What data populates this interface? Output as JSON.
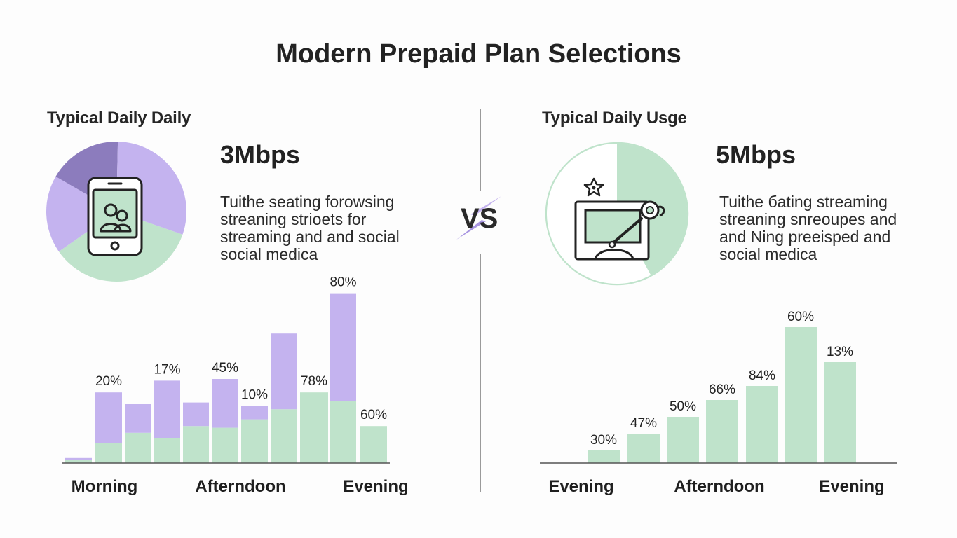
{
  "title": "Modern Prepaid Plan Selections",
  "vs_label": "VS",
  "colors": {
    "purple": "#c4b3ef",
    "purple_dark": "#8c7cbd",
    "green": "#bfe3cb",
    "axis": "#555555",
    "text": "#222222"
  },
  "left_panel": {
    "heading": "Typical Daily Daily",
    "speed": "3Mbps",
    "description": [
      "Tuithe seating forowsing",
      "streaning strioets for",
      "streaming and and social",
      "social medica"
    ],
    "icon": "smartphone-users-icon"
  },
  "right_panel": {
    "heading": "Typical Daily Usge",
    "speed": "5Mbps",
    "description": [
      "Tuithe бating streaming",
      "streaning snreoupes and",
      "and Ning preeisped and",
      "social medica"
    ],
    "icon": "monitor-stylus-icon"
  },
  "chart_data": [
    {
      "type": "pie",
      "slices": [
        {
          "color": "#8c7cbd",
          "value": 17
        },
        {
          "color": "#c4b3ef",
          "value": 30
        },
        {
          "color": "#bfe3cb",
          "value": 35
        },
        {
          "color": "#c4b3ef",
          "value": 18
        }
      ]
    },
    {
      "type": "bar",
      "stacked": true,
      "x_labels": [
        "Morning",
        "Afterndoon",
        "Evening"
      ],
      "series": [
        {
          "color": "#bfe3cb",
          "values": [
            2,
            12,
            18,
            15,
            22,
            21,
            26,
            32,
            42,
            37,
            22
          ]
        },
        {
          "color": "#c4b3ef",
          "values": [
            1,
            30,
            17,
            34,
            14,
            29,
            8,
            45,
            0,
            64,
            0
          ]
        }
      ],
      "data_labels": [
        "",
        "20%",
        "",
        "17%",
        "",
        "45%",
        "10%",
        "",
        "78%",
        "80%",
        "60%"
      ]
    },
    {
      "type": "pie",
      "slices": [
        {
          "color": "#bfe3cb",
          "value": 42
        },
        {
          "color": "#ffffff",
          "value": 58
        }
      ]
    },
    {
      "type": "bar",
      "x_labels": [
        "Evening",
        "Afterndoon",
        "Evening"
      ],
      "values": [
        9,
        21,
        33,
        45,
        55,
        97,
        72
      ],
      "data_labels": [
        "30%",
        "47%",
        "50%",
        "66%",
        "84%",
        "60%",
        "13%"
      ]
    }
  ]
}
